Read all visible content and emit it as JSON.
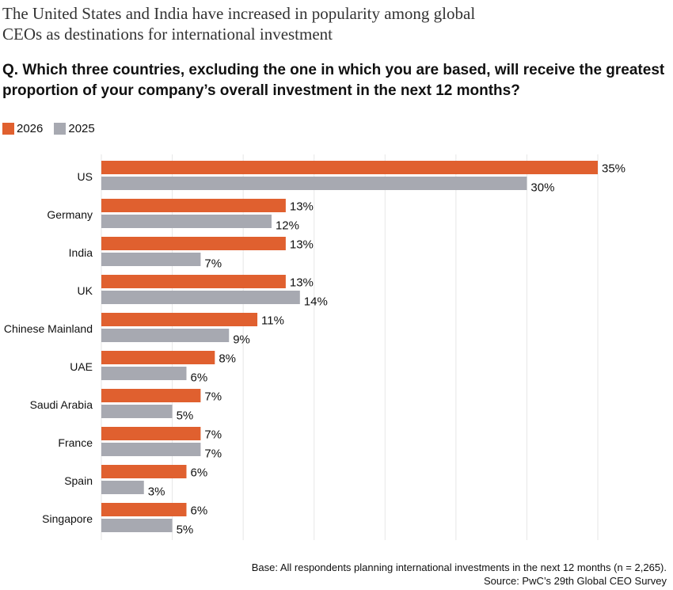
{
  "title": "The United States and India have increased in popularity among global CEOs as destinations for international investment",
  "question": "Q. Which three countries, excluding the one in which you are based, will receive the greatest proportion of your company’s overall investment in the next 12 months?",
  "footer": {
    "base": "Base: All respondents planning international investments in the next 12 months (n = 2,265).",
    "source": "Source: PwC’s 29th Global CEO Survey"
  },
  "chart_data": {
    "type": "bar",
    "orientation": "horizontal",
    "categories": [
      "US",
      "Germany",
      "India",
      "UK",
      "Chinese Mainland",
      "UAE",
      "Saudi Arabia",
      "France",
      "Spain",
      "Singapore"
    ],
    "series": [
      {
        "name": "2026",
        "color": "#e0602f",
        "values": [
          35,
          13,
          13,
          13,
          11,
          8,
          7,
          7,
          6,
          6
        ]
      },
      {
        "name": "2025",
        "color": "#a7a9b1",
        "values": [
          30,
          12,
          7,
          14,
          9,
          6,
          5,
          7,
          3,
          5
        ]
      }
    ],
    "value_suffix": "%",
    "xlim": [
      0,
      35
    ],
    "grid": true,
    "legend": "top-left"
  }
}
